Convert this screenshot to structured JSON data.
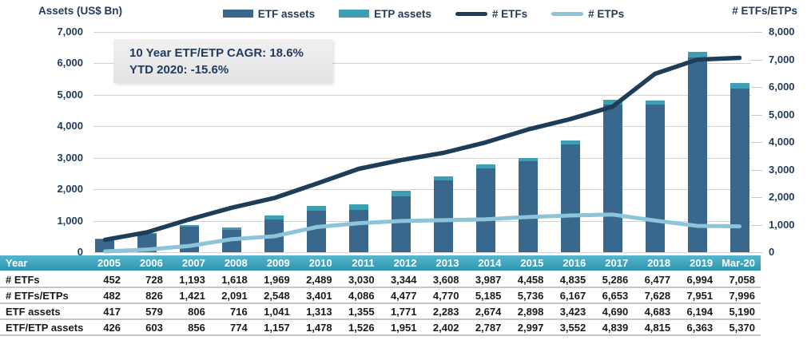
{
  "annotation": {
    "line1": "10 Year ETF/ETP CAGR: 18.6%",
    "line2": "YTD 2020: -15.6%"
  },
  "legend": {
    "items": [
      {
        "label": "ETF assets",
        "shape": "rect",
        "color": "#3A688C"
      },
      {
        "label": "ETP assets",
        "shape": "rect",
        "color": "#3E9EB4"
      },
      {
        "label": "# ETFs",
        "shape": "line",
        "color": "#1E3D59"
      },
      {
        "label": "# ETPs",
        "shape": "line",
        "color": "#8CC5DA"
      }
    ]
  },
  "chart_data": {
    "type": "bar+line combo (stacked bars on left axis, lines on right axis)",
    "categories": [
      "2005",
      "2006",
      "2007",
      "2008",
      "2009",
      "2010",
      "2011",
      "2012",
      "2013",
      "2014",
      "2015",
      "2016",
      "2017",
      "2018",
      "2019",
      "Mar-20"
    ],
    "series": [
      {
        "name": "ETF assets",
        "type": "bar",
        "stack": "assets",
        "axis": "left",
        "color": "#3A688C",
        "values": [
          417,
          579,
          806,
          716,
          1041,
          1313,
          1355,
          1771,
          2283,
          2674,
          2898,
          3423,
          4690,
          4683,
          6194,
          5190
        ]
      },
      {
        "name": "ETP assets",
        "type": "bar",
        "stack": "assets",
        "axis": "left",
        "color": "#3E9EB4",
        "values": [
          9,
          24,
          50,
          58,
          116,
          165,
          171,
          180,
          119,
          113,
          99,
          129,
          149,
          132,
          169,
          180
        ],
        "note": "stacked segment; stack total equals ETF/ETP assets row"
      },
      {
        "name": "# ETFs",
        "type": "line",
        "axis": "right",
        "color": "#1E3D59",
        "values": [
          452,
          728,
          1193,
          1618,
          1969,
          2489,
          3030,
          3344,
          3608,
          3987,
          4458,
          4835,
          5286,
          6477,
          6994,
          7058
        ]
      },
      {
        "name": "# ETPs",
        "type": "line",
        "axis": "right",
        "color": "#8CC5DA",
        "values": [
          30,
          98,
          228,
          473,
          579,
          912,
          1056,
          1133,
          1162,
          1198,
          1278,
          1332,
          1367,
          1151,
          957,
          938
        ],
        "note": "# ETFs/ETPs minus # ETFs"
      }
    ],
    "stack_totals": {
      "name": "ETF/ETP assets",
      "values": [
        426,
        603,
        856,
        774,
        1157,
        1478,
        1526,
        1951,
        2402,
        2787,
        2997,
        3552,
        4839,
        4815,
        6363,
        5370
      ]
    },
    "left_axis": {
      "title": "Assets (US$ Bn)",
      "min": 0,
      "max": 7000,
      "step": 1000
    },
    "right_axis": {
      "title": "# ETFs/ETPs",
      "min": 0,
      "max": 8000,
      "step": 1000
    },
    "grid": true,
    "legend_position": "top",
    "annotations": [
      "10 Year ETF/ETP CAGR: 18.6%",
      "YTD 2020: -15.6%"
    ]
  },
  "table": {
    "header_row": [
      "Year",
      "2005",
      "2006",
      "2007",
      "2008",
      "2009",
      "2010",
      "2011",
      "2012",
      "2013",
      "2014",
      "2015",
      "2016",
      "2017",
      "2018",
      "2019",
      "Mar-20"
    ],
    "rows": [
      {
        "label": "# ETFs",
        "values": [
          "452",
          "728",
          "1,193",
          "1,618",
          "1,969",
          "2,489",
          "3,030",
          "3,344",
          "3,608",
          "3,987",
          "4,458",
          "4,835",
          "5,286",
          "6,477",
          "6,994",
          "7,058"
        ]
      },
      {
        "label": "# ETFs/ETPs",
        "values": [
          "482",
          "826",
          "1,421",
          "2,091",
          "2,548",
          "3,401",
          "4,086",
          "4,477",
          "4,770",
          "5,185",
          "5,736",
          "6,167",
          "6,653",
          "7,628",
          "7,951",
          "7,996"
        ]
      },
      {
        "label": "ETF assets",
        "values": [
          "417",
          "579",
          "806",
          "716",
          "1,041",
          "1,313",
          "1,355",
          "1,771",
          "2,283",
          "2,674",
          "2,898",
          "3,423",
          "4,690",
          "4,683",
          "6,194",
          "5,190"
        ]
      },
      {
        "label": "ETF/ETP assets",
        "values": [
          "426",
          "603",
          "856",
          "774",
          "1,157",
          "1,478",
          "1,526",
          "1,951",
          "2,402",
          "2,787",
          "2,997",
          "3,552",
          "4,839",
          "4,815",
          "6,363",
          "5,370"
        ]
      }
    ]
  },
  "colors": {
    "bar_etf": "#3A688C",
    "bar_etp": "#3E9EB4",
    "line_etfs": "#1E3D59",
    "line_etps": "#8CC5DA",
    "axis_text": "#1F3A5C",
    "gridline": "#D3D3D3",
    "table_header_top": "#56B6CD",
    "table_header_bottom": "#2E94AF",
    "annotation_bg": "#ECECEC"
  }
}
